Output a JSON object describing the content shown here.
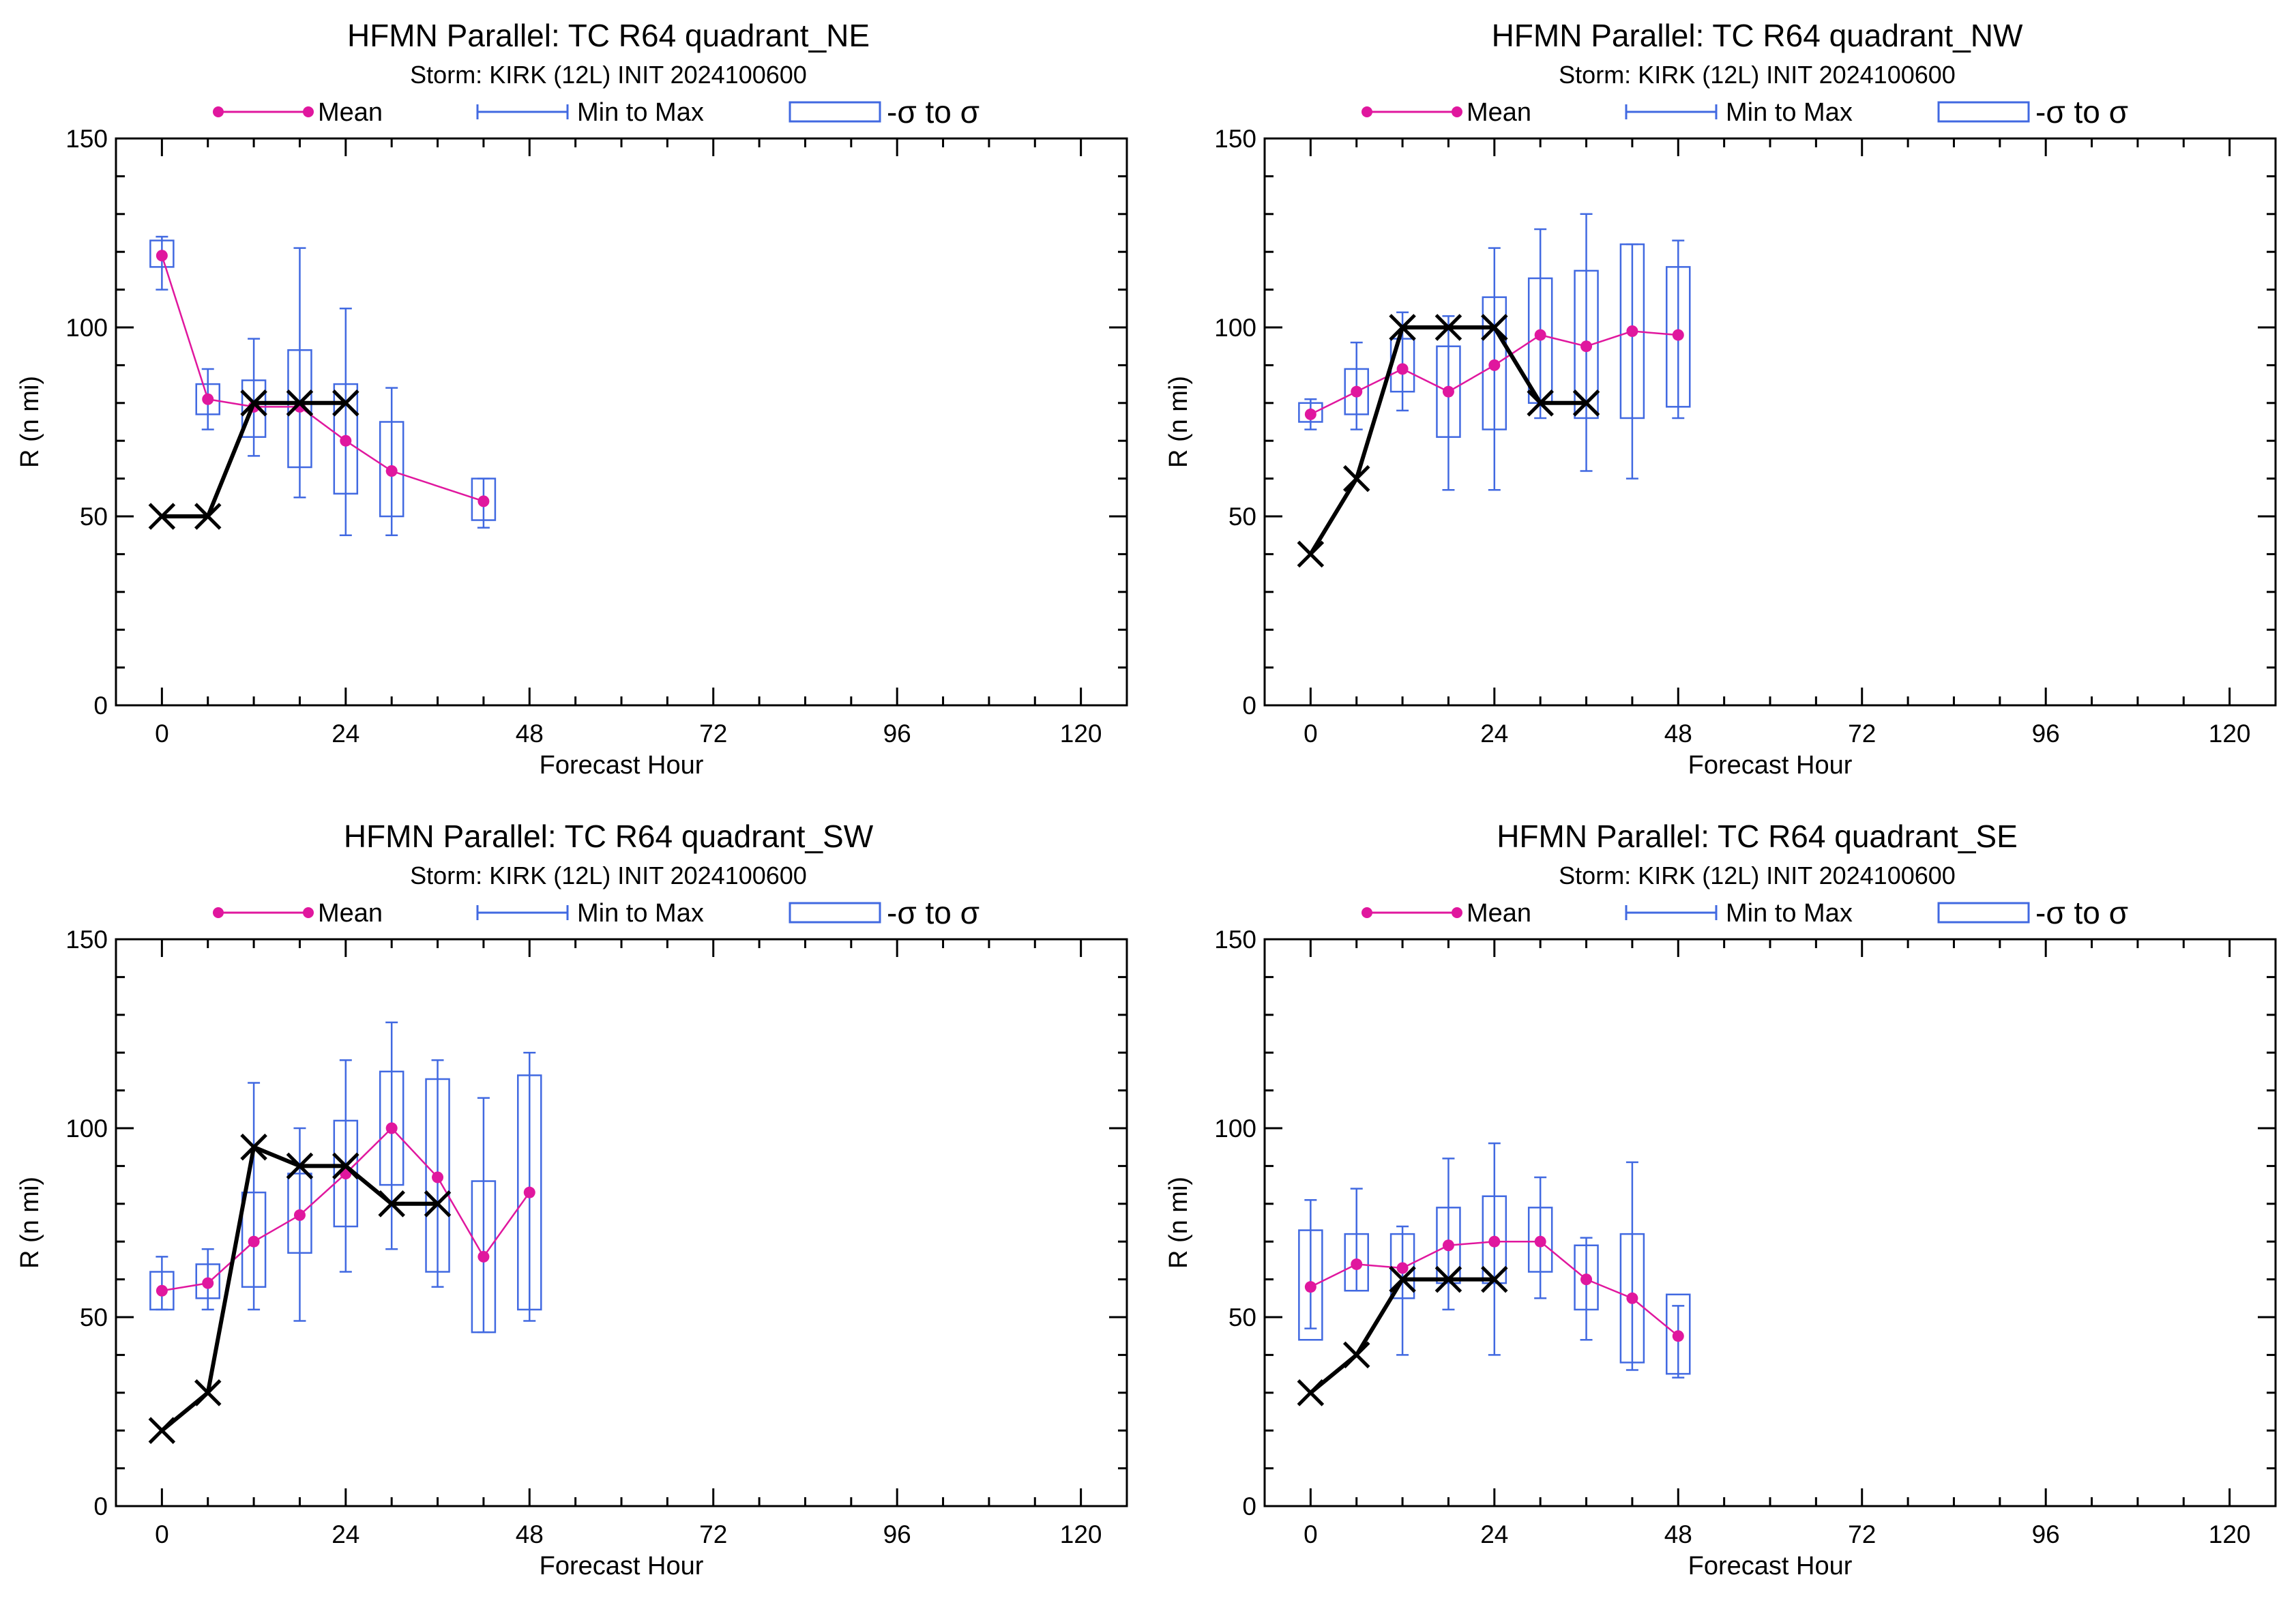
{
  "figure": {
    "legend": {
      "mean": "Mean",
      "minmax": "Min to Max",
      "sigma": "-σ to σ"
    },
    "xlabel": "Forecast Hour",
    "ylabel": "R (n mi)",
    "colors": {
      "mean": "#E0179E",
      "box": "#4169E1",
      "obs": "#000000",
      "axis": "#000000"
    }
  },
  "chart_data": [
    {
      "type": "box-line",
      "title": "HFMN Parallel: TC  R64 quadrant_NE",
      "subtitle": "Storm: KIRK (12L) INIT 2024100600",
      "xlabel": "Forecast Hour",
      "ylabel": "R (n mi)",
      "xlim": [
        -6,
        126
      ],
      "ylim": [
        0,
        150
      ],
      "xticks": [
        0,
        24,
        48,
        72,
        96,
        120
      ],
      "yticks": [
        0,
        50,
        100,
        150
      ],
      "legend": [
        "Mean",
        "Min to Max",
        "-σ to σ"
      ],
      "boxes": [
        {
          "x": 0,
          "min": 110,
          "max": 124,
          "lo": 116,
          "hi": 123,
          "mean": 119
        },
        {
          "x": 6,
          "min": 73,
          "max": 89,
          "lo": 77,
          "hi": 85,
          "mean": 81
        },
        {
          "x": 12,
          "min": 66,
          "max": 97,
          "lo": 71,
          "hi": 86,
          "mean": 79
        },
        {
          "x": 18,
          "min": 55,
          "max": 121,
          "lo": 63,
          "hi": 94,
          "mean": 79
        },
        {
          "x": 24,
          "min": 45,
          "max": 105,
          "lo": 56,
          "hi": 85,
          "mean": 70
        },
        {
          "x": 30,
          "min": 45,
          "max": 84,
          "lo": 50,
          "hi": 75,
          "mean": 62
        },
        {
          "x": 42,
          "min": 47,
          "max": 60,
          "lo": 49,
          "hi": 60,
          "mean": 54
        }
      ],
      "obs": [
        {
          "x": 0,
          "y": 50
        },
        {
          "x": 6,
          "y": 50
        },
        {
          "x": 12,
          "y": 80
        },
        {
          "x": 18,
          "y": 80
        },
        {
          "x": 24,
          "y": 80
        }
      ]
    },
    {
      "type": "box-line",
      "title": "HFMN Parallel: TC  R64 quadrant_NW",
      "subtitle": "Storm: KIRK (12L) INIT 2024100600",
      "xlabel": "Forecast Hour",
      "ylabel": "R (n mi)",
      "xlim": [
        -6,
        126
      ],
      "ylim": [
        0,
        150
      ],
      "xticks": [
        0,
        24,
        48,
        72,
        96,
        120
      ],
      "yticks": [
        0,
        50,
        100,
        150
      ],
      "legend": [
        "Mean",
        "Min to Max",
        "-σ to σ"
      ],
      "boxes": [
        {
          "x": 0,
          "min": 73,
          "max": 81,
          "lo": 75,
          "hi": 80,
          "mean": 77
        },
        {
          "x": 6,
          "min": 73,
          "max": 96,
          "lo": 77,
          "hi": 89,
          "mean": 83
        },
        {
          "x": 12,
          "min": 78,
          "max": 104,
          "lo": 83,
          "hi": 97,
          "mean": 89
        },
        {
          "x": 18,
          "min": 57,
          "max": 103,
          "lo": 71,
          "hi": 95,
          "mean": 83
        },
        {
          "x": 24,
          "min": 57,
          "max": 121,
          "lo": 73,
          "hi": 108,
          "mean": 90
        },
        {
          "x": 30,
          "min": 76,
          "max": 126,
          "lo": 80,
          "hi": 113,
          "mean": 98
        },
        {
          "x": 36,
          "min": 62,
          "max": 130,
          "lo": 76,
          "hi": 115,
          "mean": 95
        },
        {
          "x": 42,
          "min": 60,
          "max": 122,
          "lo": 76,
          "hi": 122,
          "mean": 99
        },
        {
          "x": 48,
          "min": 76,
          "max": 123,
          "lo": 79,
          "hi": 116,
          "mean": 98
        }
      ],
      "obs": [
        {
          "x": 0,
          "y": 40
        },
        {
          "x": 6,
          "y": 60
        },
        {
          "x": 12,
          "y": 100
        },
        {
          "x": 18,
          "y": 100
        },
        {
          "x": 24,
          "y": 100
        },
        {
          "x": 30,
          "y": 80
        },
        {
          "x": 36,
          "y": 80
        }
      ]
    },
    {
      "type": "box-line",
      "title": "HFMN Parallel: TC  R64 quadrant_SW",
      "subtitle": "Storm: KIRK (12L) INIT 2024100600",
      "xlabel": "Forecast Hour",
      "ylabel": "R (n mi)",
      "xlim": [
        -6,
        126
      ],
      "ylim": [
        0,
        150
      ],
      "xticks": [
        0,
        24,
        48,
        72,
        96,
        120
      ],
      "yticks": [
        0,
        50,
        100,
        150
      ],
      "legend": [
        "Mean",
        "Min to Max",
        "-σ to σ"
      ],
      "boxes": [
        {
          "x": 0,
          "min": 52,
          "max": 66,
          "lo": 52,
          "hi": 62,
          "mean": 57
        },
        {
          "x": 6,
          "min": 52,
          "max": 68,
          "lo": 55,
          "hi": 64,
          "mean": 59
        },
        {
          "x": 12,
          "min": 52,
          "max": 112,
          "lo": 58,
          "hi": 83,
          "mean": 70
        },
        {
          "x": 18,
          "min": 49,
          "max": 100,
          "lo": 67,
          "hi": 88,
          "mean": 77
        },
        {
          "x": 24,
          "min": 62,
          "max": 118,
          "lo": 74,
          "hi": 102,
          "mean": 88
        },
        {
          "x": 30,
          "min": 68,
          "max": 128,
          "lo": 85,
          "hi": 115,
          "mean": 100
        },
        {
          "x": 36,
          "min": 58,
          "max": 118,
          "lo": 62,
          "hi": 113,
          "mean": 87
        },
        {
          "x": 42,
          "min": 46,
          "max": 108,
          "lo": 46,
          "hi": 86,
          "mean": 66
        },
        {
          "x": 48,
          "min": 49,
          "max": 120,
          "lo": 52,
          "hi": 114,
          "mean": 83
        }
      ],
      "obs": [
        {
          "x": 0,
          "y": 20
        },
        {
          "x": 6,
          "y": 30
        },
        {
          "x": 12,
          "y": 95
        },
        {
          "x": 18,
          "y": 90
        },
        {
          "x": 24,
          "y": 90
        },
        {
          "x": 30,
          "y": 80
        },
        {
          "x": 36,
          "y": 80
        }
      ]
    },
    {
      "type": "box-line",
      "title": "HFMN Parallel: TC  R64 quadrant_SE",
      "subtitle": "Storm: KIRK (12L) INIT 2024100600",
      "xlabel": "Forecast Hour",
      "ylabel": "R (n mi)",
      "xlim": [
        -6,
        126
      ],
      "ylim": [
        0,
        150
      ],
      "xticks": [
        0,
        24,
        48,
        72,
        96,
        120
      ],
      "yticks": [
        0,
        50,
        100,
        150
      ],
      "legend": [
        "Mean",
        "Min to Max",
        "-σ to σ"
      ],
      "boxes": [
        {
          "x": 0,
          "min": 47,
          "max": 81,
          "lo": 44,
          "hi": 73,
          "mean": 58
        },
        {
          "x": 6,
          "min": 57,
          "max": 84,
          "lo": 57,
          "hi": 72,
          "mean": 64
        },
        {
          "x": 12,
          "min": 40,
          "max": 74,
          "lo": 55,
          "hi": 72,
          "mean": 63
        },
        {
          "x": 18,
          "min": 52,
          "max": 92,
          "lo": 59,
          "hi": 79,
          "mean": 69
        },
        {
          "x": 24,
          "min": 40,
          "max": 96,
          "lo": 59,
          "hi": 82,
          "mean": 70
        },
        {
          "x": 30,
          "min": 55,
          "max": 87,
          "lo": 62,
          "hi": 79,
          "mean": 70
        },
        {
          "x": 36,
          "min": 44,
          "max": 71,
          "lo": 52,
          "hi": 69,
          "mean": 60
        },
        {
          "x": 42,
          "min": 36,
          "max": 91,
          "lo": 38,
          "hi": 72,
          "mean": 55
        },
        {
          "x": 48,
          "min": 34,
          "max": 53,
          "lo": 35,
          "hi": 56,
          "mean": 45
        }
      ],
      "obs": [
        {
          "x": 0,
          "y": 30
        },
        {
          "x": 6,
          "y": 40
        },
        {
          "x": 12,
          "y": 60
        },
        {
          "x": 18,
          "y": 60
        },
        {
          "x": 24,
          "y": 60
        }
      ]
    }
  ]
}
